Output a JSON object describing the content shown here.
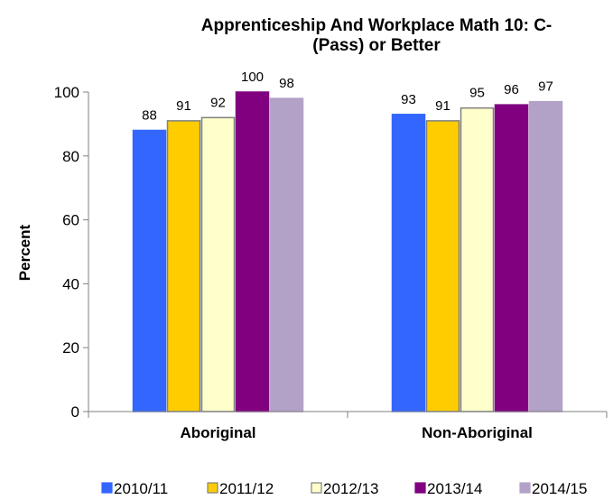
{
  "chart_data": {
    "type": "bar",
    "title_lines": [
      "Apprenticeship And Workplace Math 10: C-",
      "(Pass) or Better"
    ],
    "xlabel": "",
    "ylabel": "Percent",
    "ylim": [
      0,
      100
    ],
    "yticks": [
      0,
      20,
      40,
      60,
      80,
      100
    ],
    "ytick_labels": [
      "0",
      "20",
      "40",
      "60",
      "80",
      "100"
    ],
    "grid": false,
    "legend_position": "bottom",
    "categories": [
      "Aboriginal",
      "Non-Aboriginal"
    ],
    "series": [
      {
        "name": "2010/11",
        "values": [
          88,
          93
        ],
        "color": "#3366ff",
        "stroke": "#3366ff"
      },
      {
        "name": "2011/12",
        "values": [
          91,
          91
        ],
        "color": "#ffcc00",
        "stroke": "#808080"
      },
      {
        "name": "2012/13",
        "values": [
          92,
          95
        ],
        "color": "#ffffcc",
        "stroke": "#808080"
      },
      {
        "name": "2013/14",
        "values": [
          100,
          96
        ],
        "color": "#800080",
        "stroke": "#800080"
      },
      {
        "name": "2014/15",
        "values": [
          98,
          97
        ],
        "color": "#b3a2c7",
        "stroke": "#b3a2c7"
      }
    ],
    "data_labels": [
      [
        "88",
        "93"
      ],
      [
        "91",
        "91"
      ],
      [
        "92",
        "95"
      ],
      [
        "100",
        "96"
      ],
      [
        "98",
        "97"
      ]
    ]
  }
}
